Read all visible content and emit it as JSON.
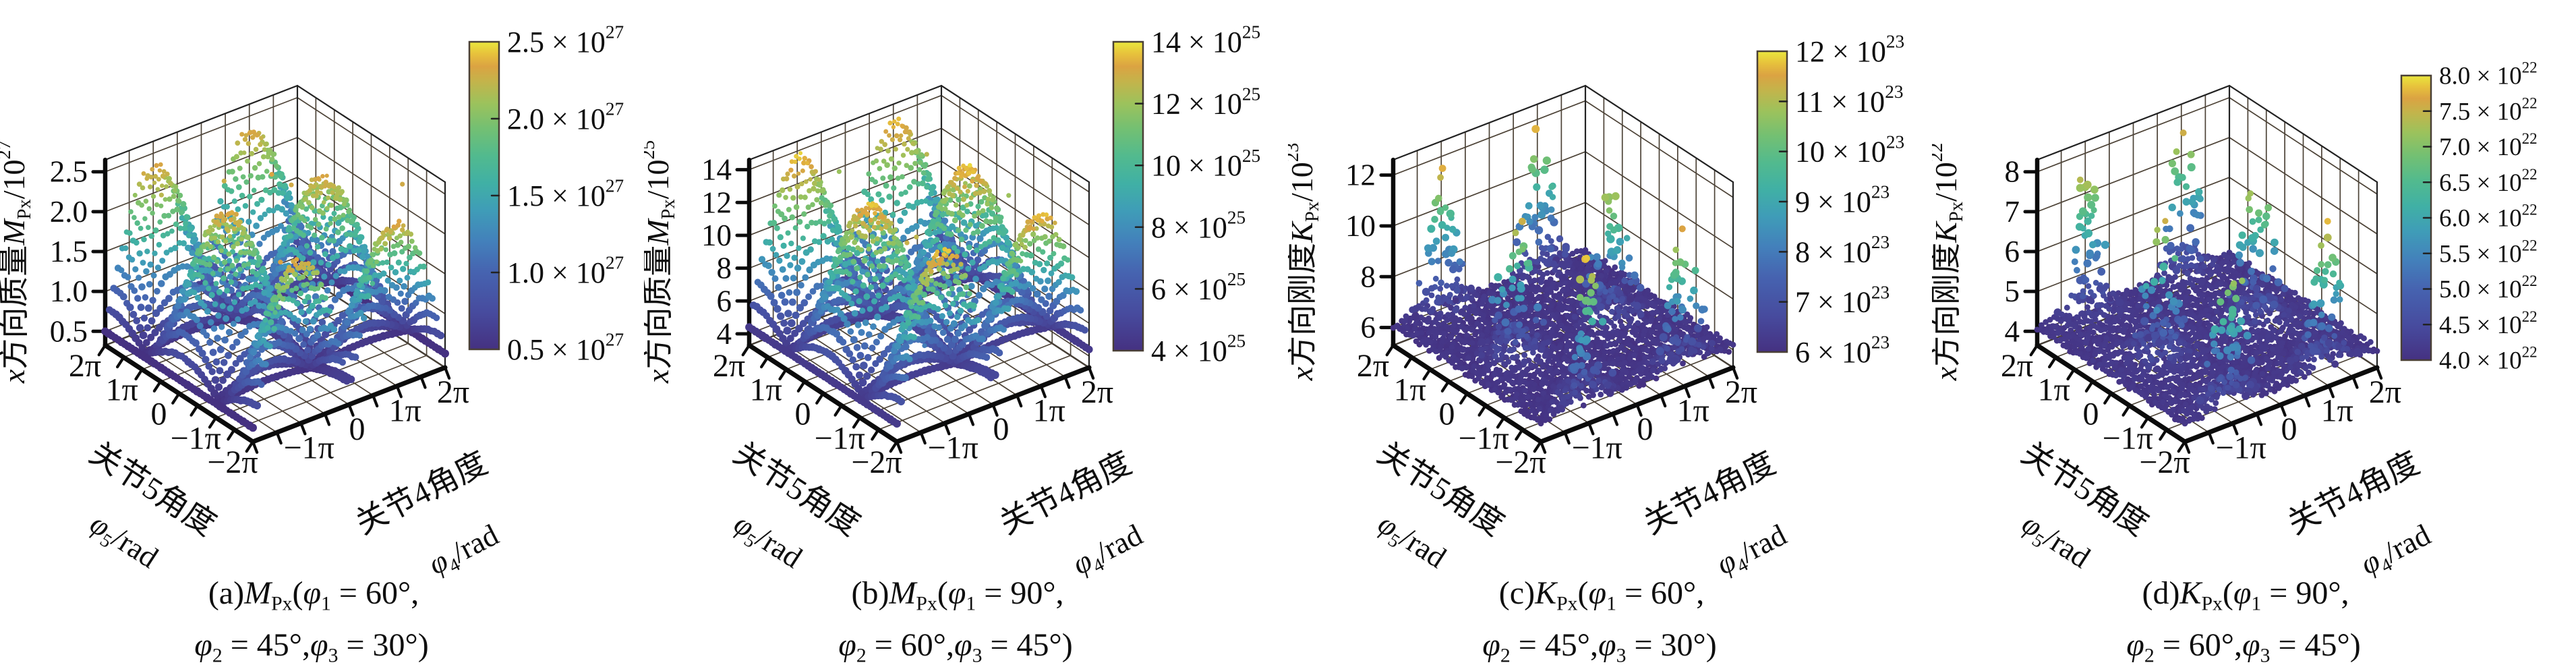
{
  "figure": {
    "background": "#ffffff",
    "marker_style": "filled circles",
    "grid_color": "#4d4337",
    "edge_color": "#0b0b0b",
    "colorbar_border_color": "#4a4036",
    "colormap_stops": [
      [
        0.0,
        "#453181"
      ],
      [
        0.12,
        "#474b9e"
      ],
      [
        0.25,
        "#4663b0"
      ],
      [
        0.35,
        "#4380bb"
      ],
      [
        0.45,
        "#3f9cb8"
      ],
      [
        0.54,
        "#40b0a5"
      ],
      [
        0.63,
        "#52ba8e"
      ],
      [
        0.72,
        "#74c072"
      ],
      [
        0.8,
        "#9cc25c"
      ],
      [
        0.87,
        "#c3b44b"
      ],
      [
        0.92,
        "#dba342"
      ],
      [
        0.96,
        "#e7c13c"
      ],
      [
        1.0,
        "#eae73d"
      ]
    ]
  },
  "chart_data": {
    "type": "scatter",
    "subtype": "3d-surface-and-scatter, 4 panels",
    "surface_model": "z = base + amp * |sin(phi4/2)| * |cos(phi5/2)|, phi4,phi5 in [-2pi,2pi]",
    "x_axis": {
      "name_cn": "关节4角度",
      "symbol_text": "φ4/rad",
      "symbol": [
        {
          "t": "φ",
          "st": "i"
        },
        {
          "t": "4",
          "st": "sub"
        },
        {
          "t": "/rad"
        }
      ],
      "range_rad": [
        -6.2832,
        6.2832
      ],
      "ticks": [
        {
          "v": -3.1416,
          "label": "−1π"
        },
        {
          "v": 0,
          "label": "0"
        },
        {
          "v": 3.1416,
          "label": "1π"
        },
        {
          "v": 6.2832,
          "label": "2π"
        }
      ],
      "minor_tick_step": "0.5π"
    },
    "y_axis": {
      "name_cn": "关节5角度",
      "symbol_text": "φ5/rad",
      "symbol": [
        {
          "t": "φ",
          "st": "i"
        },
        {
          "t": "5",
          "st": "sub"
        },
        {
          "t": "/rad"
        }
      ],
      "range_rad": [
        -6.2832,
        6.2832
      ],
      "ticks": [
        {
          "v": 6.2832,
          "label": "2π"
        },
        {
          "v": 3.1416,
          "label": "1π"
        },
        {
          "v": 0,
          "label": "0"
        },
        {
          "v": -3.1416,
          "label": "−1π"
        },
        {
          "v": -6.2832,
          "label": "−2π"
        }
      ],
      "minor_tick_step": "0.5π"
    },
    "panels": [
      {
        "id": "a",
        "kind": "surface",
        "quantity": "M_Px",
        "scale_factor": "10^27",
        "caption_text": "(a)MPx(φ1 = 60°, φ2 = 45°, φ3 = 30°)",
        "caption_line1": [
          {
            "t": "(a)"
          },
          {
            "t": "M",
            "st": "i"
          },
          {
            "t": "Px",
            "st": "sub"
          },
          {
            "t": "("
          },
          {
            "t": "φ",
            "st": "i"
          },
          {
            "t": "1",
            "st": "sub"
          },
          {
            "t": " = 60°,"
          }
        ],
        "caption_line2": [
          {
            "t": "φ",
            "st": "i"
          },
          {
            "t": "2",
            "st": "sub"
          },
          {
            "t": " = 45°,"
          },
          {
            "t": "φ",
            "st": "i"
          },
          {
            "t": "3",
            "st": "sub"
          },
          {
            "t": " = 30°)"
          }
        ],
        "z_axis_label_text": "x方向质量MPx/10^27",
        "z_axis_label": [
          {
            "t": "x",
            "st": "i"
          },
          {
            "t": "方向质量"
          },
          {
            "t": "M",
            "st": "i"
          },
          {
            "t": "Px",
            "st": "sub"
          },
          {
            "t": "/10"
          },
          {
            "t": "27",
            "st": "sup"
          }
        ],
        "z_ticks": [
          0.5,
          1.0,
          1.5,
          2.0,
          2.5
        ],
        "z_tick_labels": [
          "0.5",
          "1.0",
          "1.5",
          "2.0",
          "2.5"
        ],
        "zlim": [
          0.325,
          2.65
        ],
        "colorbar": {
          "labels_top_to_bottom": [
            "2.5",
            "2.0",
            "1.5",
            "1.0",
            "0.5"
          ],
          "exponent": "27",
          "range": [
            0.5,
            2.5
          ]
        },
        "surface": {
          "base": 0.5,
          "amp": 1.85
        }
      },
      {
        "id": "b",
        "kind": "surface",
        "quantity": "M_Px",
        "scale_factor": "10^25",
        "caption_text": "(b)MPx(φ1 = 90°, φ2 = 60°, φ3 = 45°)",
        "caption_line1": [
          {
            "t": "(b)"
          },
          {
            "t": "M",
            "st": "i"
          },
          {
            "t": "Px",
            "st": "sub"
          },
          {
            "t": "("
          },
          {
            "t": "φ",
            "st": "i"
          },
          {
            "t": "1",
            "st": "sub"
          },
          {
            "t": " = 90°,"
          }
        ],
        "caption_line2": [
          {
            "t": "φ",
            "st": "i"
          },
          {
            "t": "2",
            "st": "sub"
          },
          {
            "t": " = 60°,"
          },
          {
            "t": "φ",
            "st": "i"
          },
          {
            "t": "3",
            "st": "sub"
          },
          {
            "t": " = 45°)"
          }
        ],
        "z_axis_label_text": "x方向质量MPx/10^25",
        "z_axis_label": [
          {
            "t": "x",
            "st": "i"
          },
          {
            "t": "方向质量"
          },
          {
            "t": "M",
            "st": "i"
          },
          {
            "t": "Px",
            "st": "sub"
          },
          {
            "t": "/10"
          },
          {
            "t": "25",
            "st": "sup"
          }
        ],
        "z_ticks": [
          4,
          6,
          8,
          10,
          12,
          14
        ],
        "z_tick_labels": [
          "4",
          "6",
          "8",
          "10",
          "12",
          "14"
        ],
        "zlim": [
          3.3,
          14.6
        ],
        "colorbar": {
          "labels_top_to_bottom": [
            "14",
            "12",
            "10",
            "8",
            "6",
            "4"
          ],
          "exponent": "25",
          "range": [
            4,
            14
          ]
        },
        "surface": {
          "base": 4.4,
          "amp": 9.3
        }
      },
      {
        "id": "c",
        "kind": "scatter-spikes",
        "quantity": "K_Px",
        "scale_factor": "10^23",
        "caption_text": "(c)KPx(φ1 = 60°, φ2 = 45°, φ3 = 30°)",
        "caption_line1": [
          {
            "t": "(c)"
          },
          {
            "t": "K",
            "st": "i"
          },
          {
            "t": "Px",
            "st": "sub"
          },
          {
            "t": "("
          },
          {
            "t": "φ",
            "st": "i"
          },
          {
            "t": "1",
            "st": "sub"
          },
          {
            "t": " = 60°,"
          }
        ],
        "caption_line2": [
          {
            "t": "φ",
            "st": "i"
          },
          {
            "t": "2",
            "st": "sub"
          },
          {
            "t": " = 45°,"
          },
          {
            "t": "φ",
            "st": "i"
          },
          {
            "t": "3",
            "st": "sub"
          },
          {
            "t": " = 30°)"
          }
        ],
        "z_axis_label_text": "x方向刚度KPx/10^23",
        "z_axis_label": [
          {
            "t": "x",
            "st": "i"
          },
          {
            "t": "方向刚度"
          },
          {
            "t": "K",
            "st": "i"
          },
          {
            "t": "Px",
            "st": "sub"
          },
          {
            "t": "/10"
          },
          {
            "t": "23",
            "st": "sup"
          }
        ],
        "z_ticks": [
          6,
          8,
          10,
          12
        ],
        "z_tick_labels": [
          "6",
          "8",
          "10",
          "12"
        ],
        "zlim": [
          5.3,
          12.6
        ],
        "colorbar": {
          "labels_top_to_bottom": [
            "12",
            "11",
            "10",
            "9",
            "8",
            "7",
            "6"
          ],
          "exponent": "23",
          "range": [
            6,
            12
          ]
        },
        "scatter": {
          "floor": 5.9,
          "zmax": 11.9
        }
      },
      {
        "id": "d",
        "kind": "scatter-spikes",
        "quantity": "K_Px",
        "scale_factor": "10^22",
        "caption_text": "(d)KPx(φ1 = 90°, φ2 = 60°, φ3 = 45°)",
        "caption_line1": [
          {
            "t": "(d)"
          },
          {
            "t": "K",
            "st": "i"
          },
          {
            "t": "Px",
            "st": "sub"
          },
          {
            "t": "("
          },
          {
            "t": "φ",
            "st": "i"
          },
          {
            "t": "1",
            "st": "sub"
          },
          {
            "t": " = 90°,"
          }
        ],
        "caption_line2": [
          {
            "t": "φ",
            "st": "i"
          },
          {
            "t": "2",
            "st": "sub"
          },
          {
            "t": " = 60°,"
          },
          {
            "t": "φ",
            "st": "i"
          },
          {
            "t": "3",
            "st": "sub"
          },
          {
            "t": " = 45°)"
          }
        ],
        "z_axis_label_text": "x方向刚度KPx/10^22",
        "z_axis_label": [
          {
            "t": "x",
            "st": "i"
          },
          {
            "t": "方向刚度"
          },
          {
            "t": "K",
            "st": "i"
          },
          {
            "t": "Px",
            "st": "sub"
          },
          {
            "t": "/10"
          },
          {
            "t": "22",
            "st": "sup"
          }
        ],
        "z_ticks": [
          4,
          5,
          6,
          7,
          8
        ],
        "z_tick_labels": [
          "4",
          "5",
          "6",
          "7",
          "8"
        ],
        "zlim": [
          3.65,
          8.3
        ],
        "colorbar": {
          "labels_top_to_bottom": [
            "8.0",
            "7.5",
            "7.0",
            "6.5",
            "6.0",
            "5.5",
            "5.0",
            "4.5",
            "4.0"
          ],
          "exponent": "22",
          "range": [
            4,
            8
          ]
        },
        "scatter": {
          "floor": 3.98,
          "zmax": 7.9
        }
      }
    ]
  }
}
